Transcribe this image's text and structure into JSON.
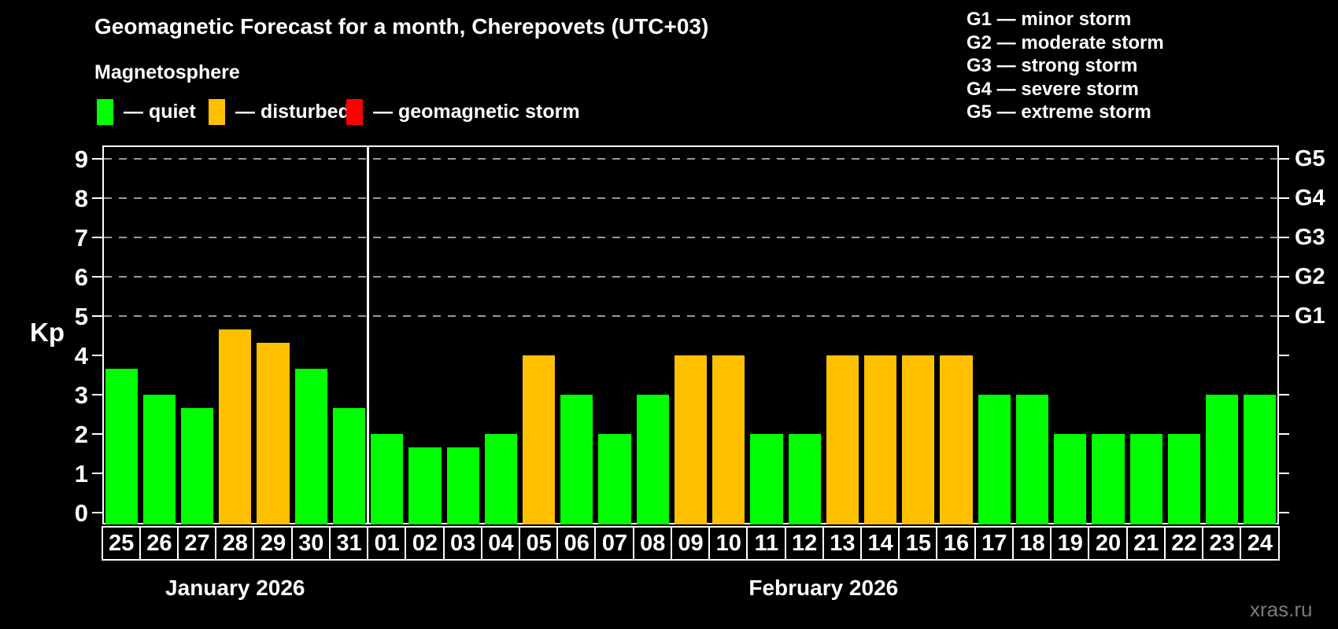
{
  "title": "Geomagnetic Forecast for a month, Cherepovets (UTC+03)",
  "subtitle": "Magnetosphere",
  "watermark": "xras.ru",
  "legend": {
    "items": [
      {
        "name": "quiet",
        "label": "— quiet",
        "color": "#00ff00"
      },
      {
        "name": "disturbed",
        "label": "— disturbed",
        "color": "#ffc000"
      },
      {
        "name": "geomagnetic-storm",
        "label": "— geomagnetic storm",
        "color": "#ff0000"
      }
    ]
  },
  "g_legend": [
    "G1 — minor storm",
    "G2 — moderate storm",
    "G3 — strong storm",
    "G4 — severe storm",
    "G5 — extreme storm"
  ],
  "chart_data": {
    "type": "bar",
    "ylabel": "Kp",
    "ylim": [
      0,
      9
    ],
    "yticks": [
      0,
      1,
      2,
      3,
      4,
      5,
      6,
      7,
      8,
      9
    ],
    "gridlines_at": [
      5,
      6,
      7,
      8,
      9
    ],
    "grid": "dashed horizontal at storm levels only",
    "legend_position": "top-left",
    "right_axis_labels": [
      {
        "kp": 5,
        "label": "G1"
      },
      {
        "kp": 6,
        "label": "G2"
      },
      {
        "kp": 7,
        "label": "G3"
      },
      {
        "kp": 8,
        "label": "G4"
      },
      {
        "kp": 9,
        "label": "G5"
      }
    ],
    "state_colors": {
      "quiet": "#00ff00",
      "disturbed": "#ffc000",
      "storm": "#ff0000"
    },
    "months": [
      {
        "label": "January 2026",
        "days": [
          {
            "day": "25",
            "kp": 3.67,
            "state": "quiet"
          },
          {
            "day": "26",
            "kp": 3.0,
            "state": "quiet"
          },
          {
            "day": "27",
            "kp": 2.67,
            "state": "quiet"
          },
          {
            "day": "28",
            "kp": 4.67,
            "state": "disturbed"
          },
          {
            "day": "29",
            "kp": 4.33,
            "state": "disturbed"
          },
          {
            "day": "30",
            "kp": 3.67,
            "state": "quiet"
          },
          {
            "day": "31",
            "kp": 2.67,
            "state": "quiet"
          }
        ]
      },
      {
        "label": "February 2026",
        "days": [
          {
            "day": "01",
            "kp": 2.0,
            "state": "quiet"
          },
          {
            "day": "02",
            "kp": 1.67,
            "state": "quiet"
          },
          {
            "day": "03",
            "kp": 1.67,
            "state": "quiet"
          },
          {
            "day": "04",
            "kp": 2.0,
            "state": "quiet"
          },
          {
            "day": "05",
            "kp": 4.0,
            "state": "disturbed"
          },
          {
            "day": "06",
            "kp": 3.0,
            "state": "quiet"
          },
          {
            "day": "07",
            "kp": 2.0,
            "state": "quiet"
          },
          {
            "day": "08",
            "kp": 3.0,
            "state": "quiet"
          },
          {
            "day": "09",
            "kp": 4.0,
            "state": "disturbed"
          },
          {
            "day": "10",
            "kp": 4.0,
            "state": "disturbed"
          },
          {
            "day": "11",
            "kp": 2.0,
            "state": "quiet"
          },
          {
            "day": "12",
            "kp": 2.0,
            "state": "quiet"
          },
          {
            "day": "13",
            "kp": 4.0,
            "state": "disturbed"
          },
          {
            "day": "14",
            "kp": 4.0,
            "state": "disturbed"
          },
          {
            "day": "15",
            "kp": 4.0,
            "state": "disturbed"
          },
          {
            "day": "16",
            "kp": 4.0,
            "state": "disturbed"
          },
          {
            "day": "17",
            "kp": 3.0,
            "state": "quiet"
          },
          {
            "day": "18",
            "kp": 3.0,
            "state": "quiet"
          },
          {
            "day": "19",
            "kp": 2.0,
            "state": "quiet"
          },
          {
            "day": "20",
            "kp": 2.0,
            "state": "quiet"
          },
          {
            "day": "21",
            "kp": 2.0,
            "state": "quiet"
          },
          {
            "day": "22",
            "kp": 2.0,
            "state": "quiet"
          },
          {
            "day": "23",
            "kp": 3.0,
            "state": "quiet"
          },
          {
            "day": "24",
            "kp": 3.0,
            "state": "quiet"
          }
        ]
      }
    ]
  }
}
